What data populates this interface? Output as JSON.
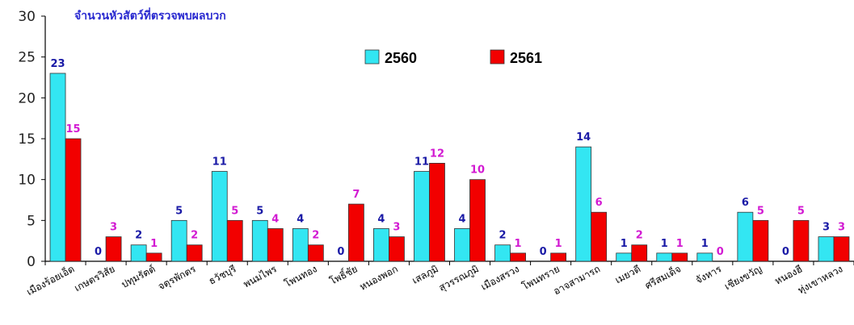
{
  "chart_data": {
    "type": "bar",
    "title": "จำนวนหัวสัตว์ที่ตรวจพบผลบวก",
    "xlabel": "",
    "ylabel": "",
    "ylim": [
      0,
      30
    ],
    "yticks": [
      0,
      5,
      10,
      15,
      20,
      25,
      30
    ],
    "grid": false,
    "legend_position": "top",
    "categories": [
      "เมืองร้อยเอ็ด",
      "เกษตรวิสัย",
      "ปทุมรัตต์",
      "จตุรพักตร",
      "ธวัชบุรี",
      "พนมไพร",
      "โพนทอง",
      "โพธิ์ชัย",
      "หนองพอก",
      "เสลภูมิ",
      "สุวรรณภูมิ",
      "เมืองสรวง",
      "โพนทราย",
      "อาจสามารถ",
      "เมยวดี",
      "ศรีสมเด็จ",
      "จังหาร",
      "เชียงขวัญ",
      "หนองฮี",
      "ทุ่งเขาหลวง"
    ],
    "series": [
      {
        "name": "2560",
        "color": "#33e6f2",
        "label_color": "#1a1aa6",
        "values": [
          23,
          0,
          2,
          5,
          11,
          5,
          4,
          0,
          4,
          11,
          4,
          2,
          0,
          14,
          1,
          1,
          1,
          6,
          0,
          3
        ]
      },
      {
        "name": "2561",
        "color": "#f20000",
        "label_color": "#d21ad2",
        "values": [
          15,
          3,
          1,
          2,
          5,
          4,
          2,
          7,
          3,
          12,
          10,
          1,
          1,
          6,
          2,
          1,
          0,
          5,
          5,
          3
        ]
      }
    ]
  }
}
